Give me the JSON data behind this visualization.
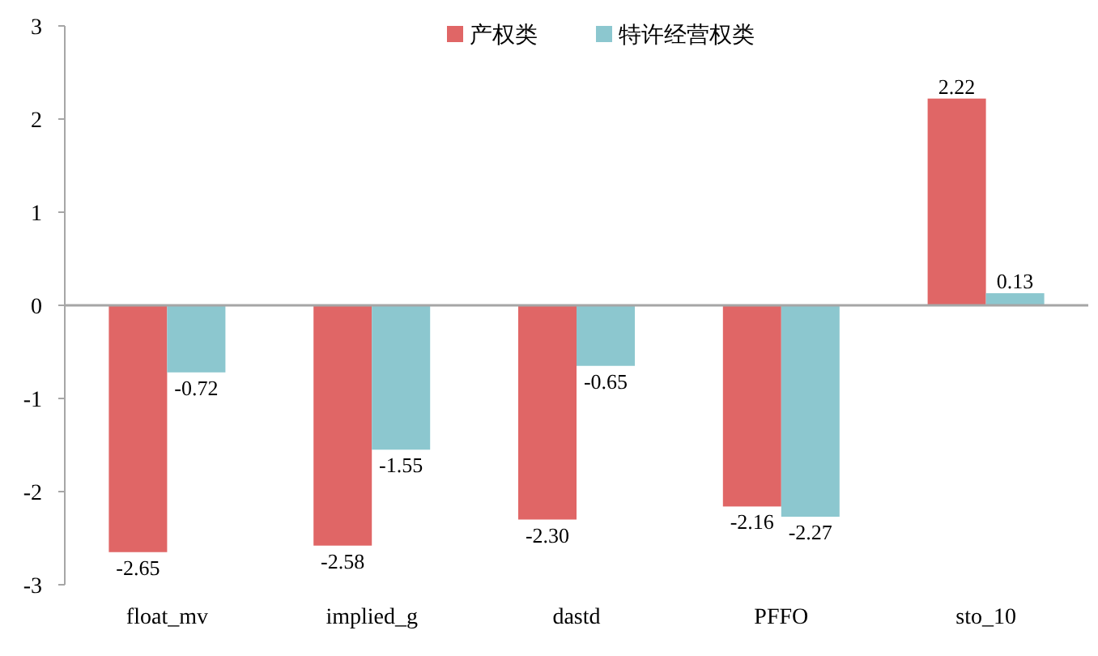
{
  "chart_data": {
    "type": "bar",
    "categories": [
      "float_mv",
      "implied_g",
      "dastd",
      "PFFO",
      "sto_10"
    ],
    "series": [
      {
        "name": "产权类",
        "color": "#e06666",
        "values": [
          -2.65,
          -2.58,
          -2.3,
          -2.16,
          2.22
        ],
        "value_labels": [
          "-2.65",
          "-2.58",
          "-2.30",
          "-2.16",
          "2.22"
        ]
      },
      {
        "name": "特许经营权类",
        "color": "#8cc7cf",
        "values": [
          -0.72,
          -1.55,
          -0.65,
          -2.27,
          0.13
        ],
        "value_labels": [
          "-0.72",
          "-1.55",
          "-0.65",
          "-2.27",
          "0.13"
        ]
      }
    ],
    "ylim": [
      -3,
      3
    ],
    "yticks": [
      -3,
      -2,
      -1,
      0,
      1,
      2,
      3
    ],
    "legend": "top"
  }
}
